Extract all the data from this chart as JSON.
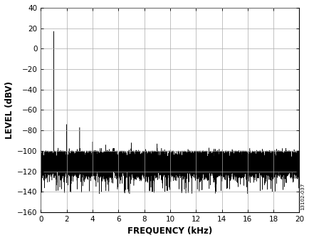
{
  "xlim": [
    0,
    20
  ],
  "ylim": [
    -160,
    40
  ],
  "xticks": [
    0,
    2,
    4,
    6,
    8,
    10,
    12,
    14,
    16,
    18,
    20
  ],
  "yticks": [
    -160,
    -140,
    -120,
    -100,
    -80,
    -60,
    -40,
    -20,
    0,
    20,
    40
  ],
  "xlabel": "FREQUENCY (kHz)",
  "ylabel": "LEVEL (dBV)",
  "line_color": "#000000",
  "background_color": "#ffffff",
  "grid_color": "#aaaaaa",
  "watermark": "13102-037",
  "noise_floor_mean": -113,
  "noise_floor_std": 6,
  "noise_low_std": 5,
  "tone_freq_khz": 1.0,
  "tone_level_dbv": 17,
  "harmonics": [
    {
      "freq": 2.0,
      "level": -74
    },
    {
      "freq": 3.0,
      "level": -77
    },
    {
      "freq": 4.0,
      "level": -91
    },
    {
      "freq": 5.0,
      "level": -94
    },
    {
      "freq": 7.0,
      "level": -92
    },
    {
      "freq": 9.0,
      "level": -93
    },
    {
      "freq": 13.0,
      "level": -97
    },
    {
      "freq": 19.0,
      "level": -100
    },
    {
      "freq": 20.0,
      "level": -100
    }
  ],
  "num_points": 20000,
  "num_extra_spikes": 200,
  "spike_level_min": -108,
  "spike_level_max": -97,
  "figsize": [
    4.35,
    3.37
  ],
  "dpi": 100
}
